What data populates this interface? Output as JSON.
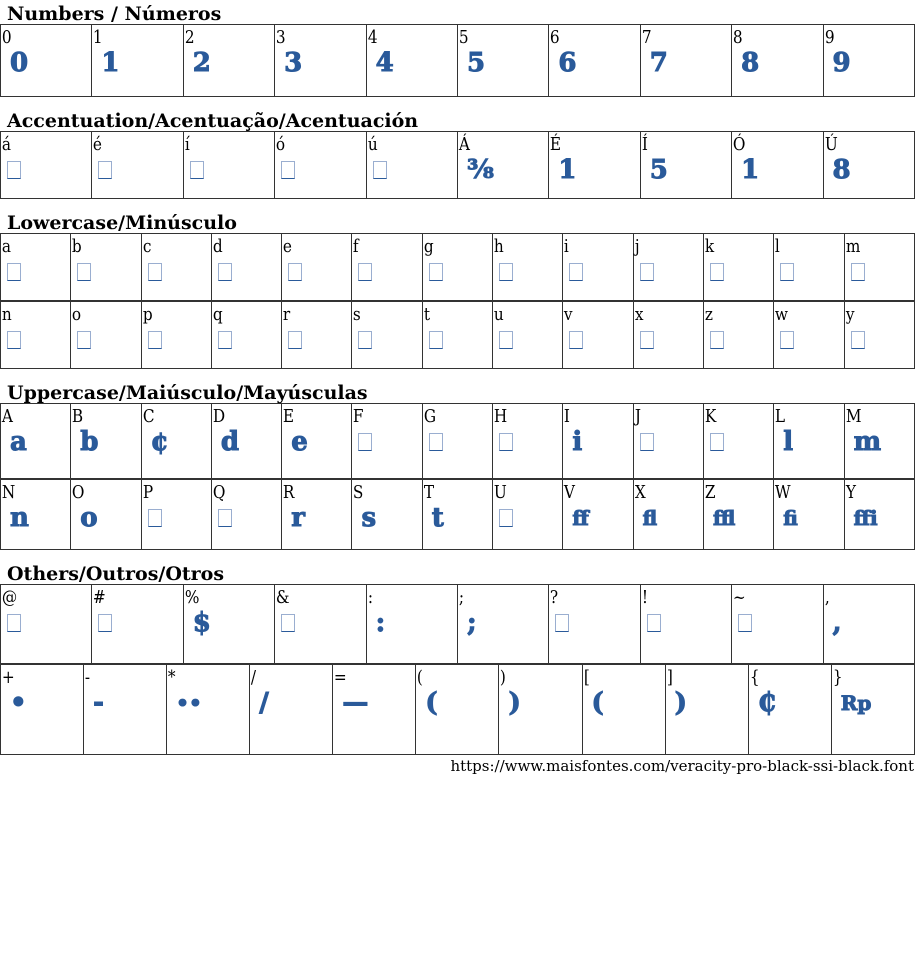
{
  "glyph_color": "#2a5a9a",
  "sections": [
    {
      "title": "Numbers / Números",
      "rows": [
        [
          [
            "0",
            "0"
          ],
          [
            "1",
            "1"
          ],
          [
            "2",
            "2"
          ],
          [
            "3",
            "3"
          ],
          [
            "4",
            "4"
          ],
          [
            "5",
            "5"
          ],
          [
            "6",
            "6"
          ],
          [
            "7",
            "7"
          ],
          [
            "8",
            "8"
          ],
          [
            "9",
            "9"
          ]
        ]
      ]
    },
    {
      "title": "Accentuation/Acentuação/Acentuación",
      "rows": [
        [
          [
            "á",
            null
          ],
          [
            "é",
            null
          ],
          [
            "í",
            null
          ],
          [
            "ó",
            null
          ],
          [
            "ú",
            null
          ],
          [
            "Á",
            "⅜"
          ],
          [
            "É",
            "1"
          ],
          [
            "Í",
            "5"
          ],
          [
            "Ó",
            "1"
          ],
          [
            "Ú",
            "8"
          ]
        ]
      ]
    },
    {
      "title": "Lowercase/Minúsculo",
      "rows": [
        [
          [
            "a",
            null
          ],
          [
            "b",
            null
          ],
          [
            "c",
            null
          ],
          [
            "d",
            null
          ],
          [
            "e",
            null
          ],
          [
            "f",
            null
          ],
          [
            "g",
            null
          ],
          [
            "h",
            null
          ],
          [
            "i",
            null
          ],
          [
            "j",
            null
          ],
          [
            "k",
            null
          ],
          [
            "l",
            null
          ],
          [
            "m",
            null
          ]
        ],
        [
          [
            "n",
            null
          ],
          [
            "o",
            null
          ],
          [
            "p",
            null
          ],
          [
            "q",
            null
          ],
          [
            "r",
            null
          ],
          [
            "s",
            null
          ],
          [
            "t",
            null
          ],
          [
            "u",
            null
          ],
          [
            "v",
            null
          ],
          [
            "x",
            null
          ],
          [
            "z",
            null
          ],
          [
            "w",
            null
          ],
          [
            "y",
            null
          ]
        ]
      ]
    },
    {
      "title": "Uppercase/Maiúsculo/Mayúsculas",
      "rows": [
        [
          [
            "A",
            "a"
          ],
          [
            "B",
            "b"
          ],
          [
            "C",
            "¢"
          ],
          [
            "D",
            "d"
          ],
          [
            "E",
            "e"
          ],
          [
            "F",
            null
          ],
          [
            "G",
            null
          ],
          [
            "H",
            null
          ],
          [
            "I",
            "i"
          ],
          [
            "J",
            null
          ],
          [
            "K",
            null
          ],
          [
            "L",
            "l"
          ],
          [
            "M",
            "m"
          ]
        ],
        [
          [
            "N",
            "n"
          ],
          [
            "O",
            "o"
          ],
          [
            "P",
            null
          ],
          [
            "Q",
            null
          ],
          [
            "R",
            "r"
          ],
          [
            "S",
            "s"
          ],
          [
            "T",
            "t"
          ],
          [
            "U",
            null
          ],
          [
            "V",
            "ff"
          ],
          [
            "X",
            "fl"
          ],
          [
            "Z",
            "ffl"
          ],
          [
            "W",
            "fi"
          ],
          [
            "Y",
            "ffi"
          ]
        ]
      ]
    },
    {
      "title": "Others/Outros/Otros",
      "rows": [
        [
          [
            "@",
            null
          ],
          [
            "#",
            null
          ],
          [
            "%",
            "$"
          ],
          [
            "&",
            null
          ],
          [
            ":",
            ":"
          ],
          [
            ";",
            ";"
          ],
          [
            "?",
            null
          ],
          [
            "!",
            null
          ],
          [
            "~",
            null
          ],
          [
            ",",
            ","
          ]
        ],
        [
          [
            "+",
            "•"
          ],
          [
            "-",
            "-"
          ],
          [
            "*",
            "••"
          ],
          [
            "/",
            "/"
          ],
          [
            "=",
            "—"
          ],
          [
            "(",
            "("
          ],
          [
            ")",
            ")"
          ],
          [
            "[",
            "("
          ],
          [
            "]",
            ")"
          ],
          [
            "{",
            "₵"
          ],
          [
            "}",
            "Rp"
          ]
        ]
      ]
    }
  ],
  "footer_url": "https://www.maisfontes.com/veracity-pro-black-ssi-black.font"
}
